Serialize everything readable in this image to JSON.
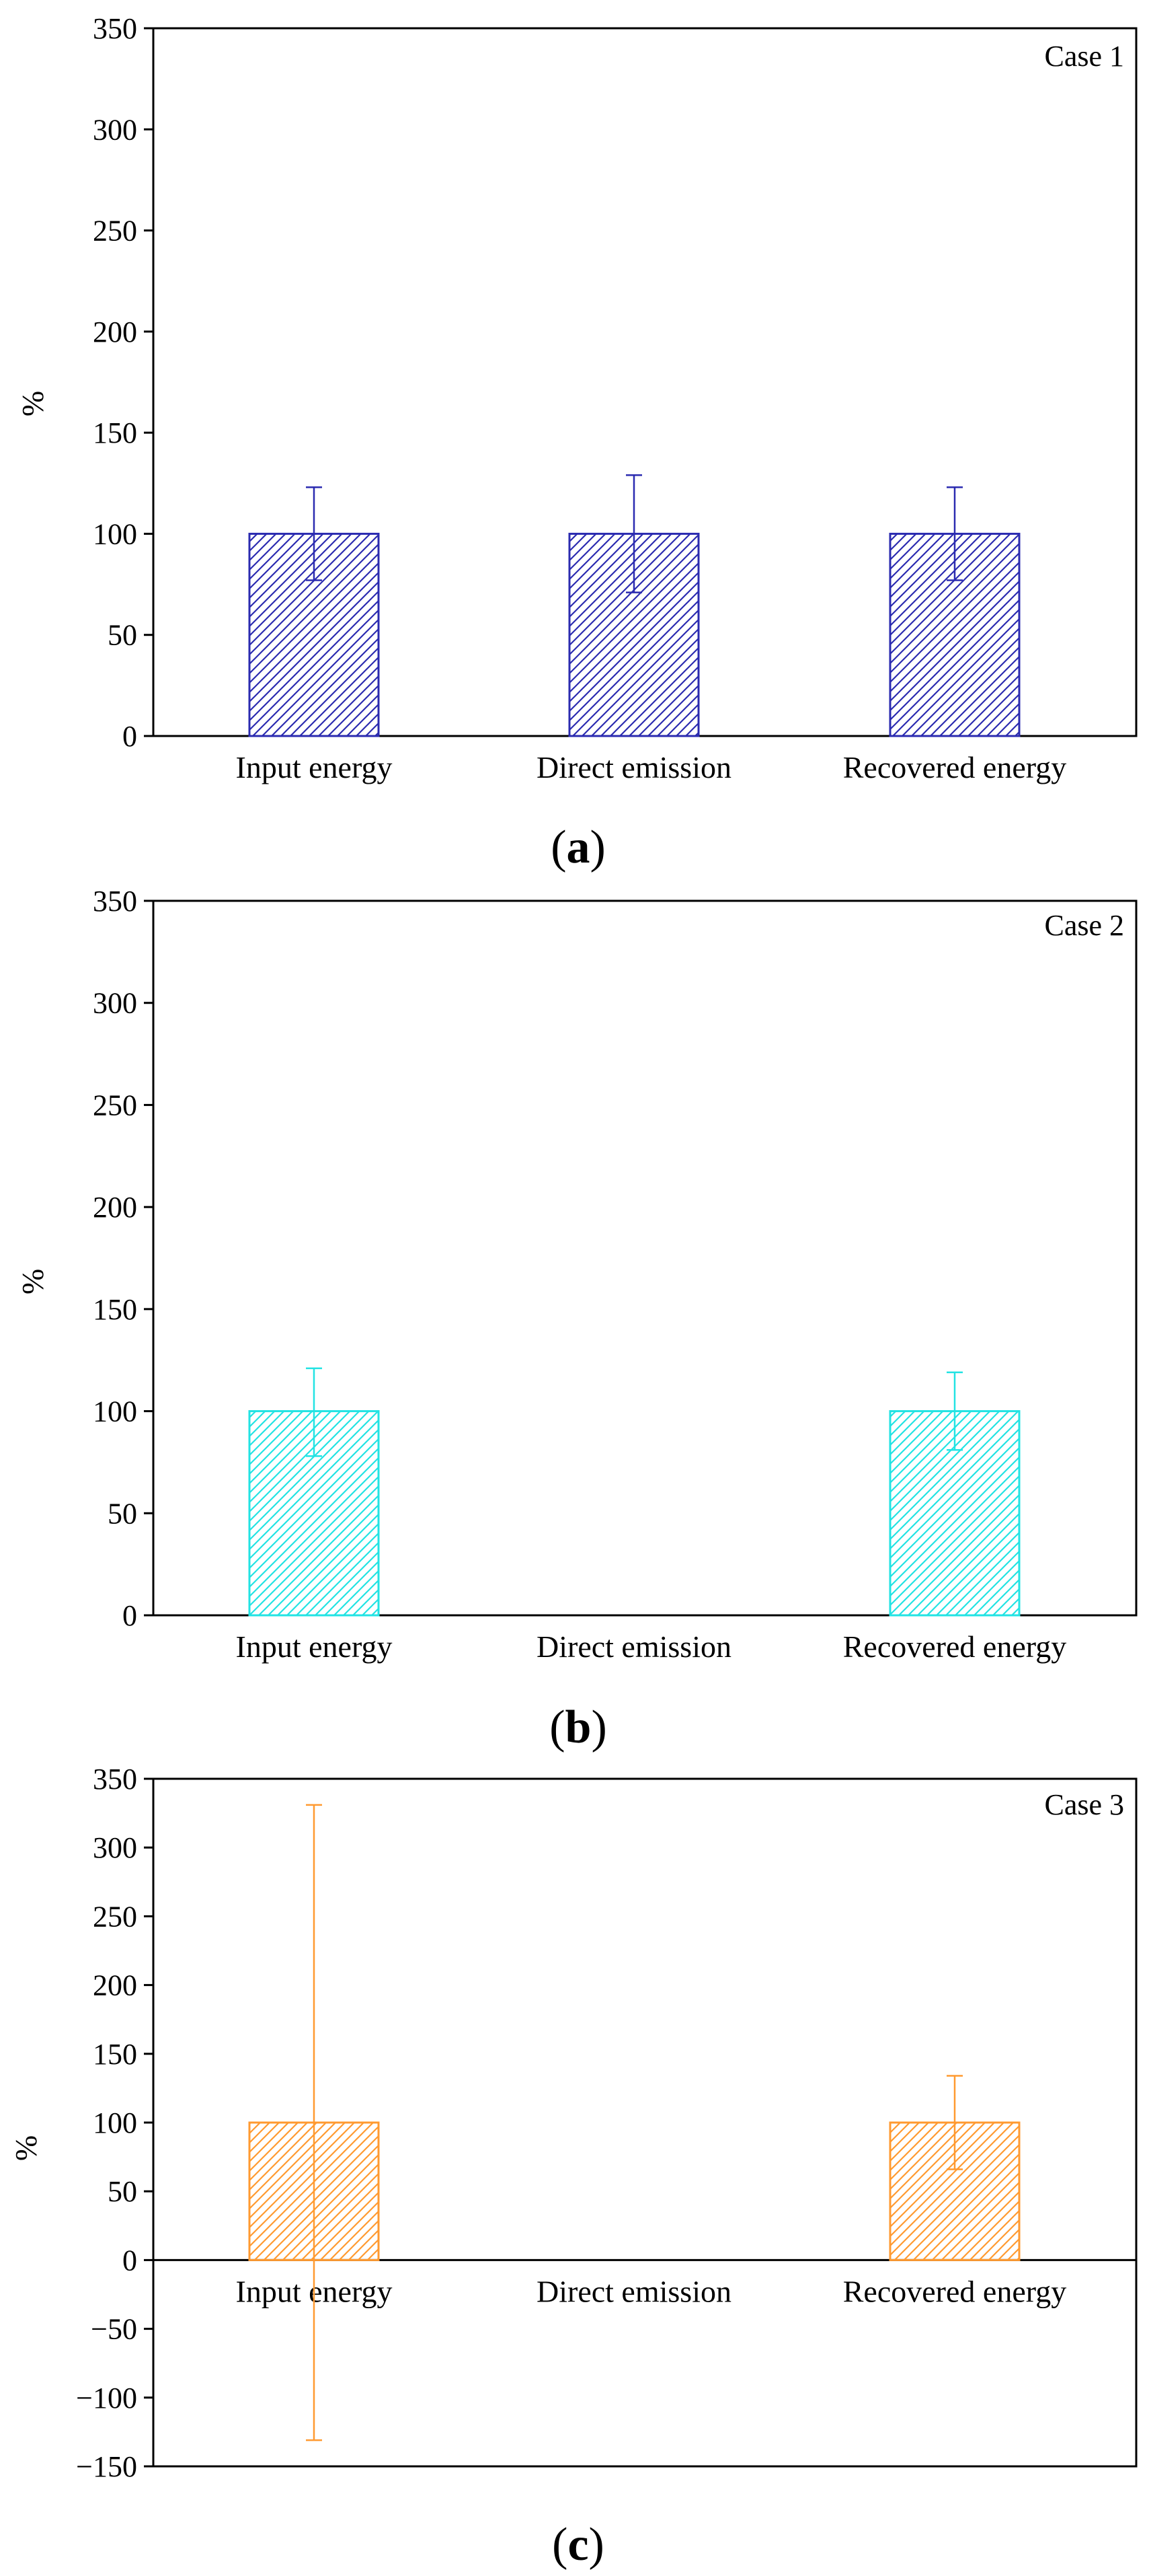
{
  "figure": {
    "panels": [
      "a",
      "b",
      "c"
    ]
  },
  "chart_data": [
    {
      "type": "bar",
      "panel_label": "a",
      "case_label": "Case 1",
      "ylabel": "%",
      "xlabel": "",
      "categories": [
        "Input energy",
        "Direct emission",
        "Recovered energy"
      ],
      "values": [
        100,
        100,
        100
      ],
      "error_low": [
        77,
        71,
        77
      ],
      "error_high": [
        123,
        129,
        123
      ],
      "ylim": [
        0,
        350
      ],
      "yticks": [
        0,
        50,
        100,
        150,
        200,
        250,
        300,
        350
      ],
      "ytick_labels": [
        "0",
        "50",
        "100",
        "150",
        "200",
        "250",
        "300",
        "350"
      ],
      "color": "#2b2bb0",
      "hatch": "diagonal",
      "grid": false
    },
    {
      "type": "bar",
      "panel_label": "b",
      "case_label": "Case 2",
      "ylabel": "%",
      "xlabel": "",
      "categories": [
        "Input energy",
        "Direct emission",
        "Recovered energy"
      ],
      "values": [
        100,
        null,
        100
      ],
      "error_low": [
        78,
        null,
        81
      ],
      "error_high": [
        121,
        null,
        119
      ],
      "ylim": [
        0,
        350
      ],
      "yticks": [
        0,
        50,
        100,
        150,
        200,
        250,
        300,
        350
      ],
      "ytick_labels": [
        "0",
        "50",
        "100",
        "150",
        "200",
        "250",
        "300",
        "350"
      ],
      "color": "#22e3e3",
      "hatch": "diagonal",
      "grid": false
    },
    {
      "type": "bar",
      "panel_label": "c",
      "case_label": "Case 3",
      "ylabel": "%",
      "xlabel": "",
      "categories": [
        "Input energy",
        "Direct emission",
        "Recovered energy"
      ],
      "values": [
        100,
        null,
        100
      ],
      "error_low": [
        -131,
        null,
        66
      ],
      "error_high": [
        331,
        null,
        134
      ],
      "ylim": [
        -150,
        350
      ],
      "yticks": [
        -150,
        -100,
        -50,
        0,
        50,
        100,
        150,
        200,
        250,
        300,
        350
      ],
      "ytick_labels": [
        "−150",
        "−100",
        "−50",
        "0",
        "50",
        "100",
        "150",
        "200",
        "250",
        "300",
        "350"
      ],
      "color": "#ff9a30",
      "hatch": "diagonal",
      "grid": false
    }
  ]
}
